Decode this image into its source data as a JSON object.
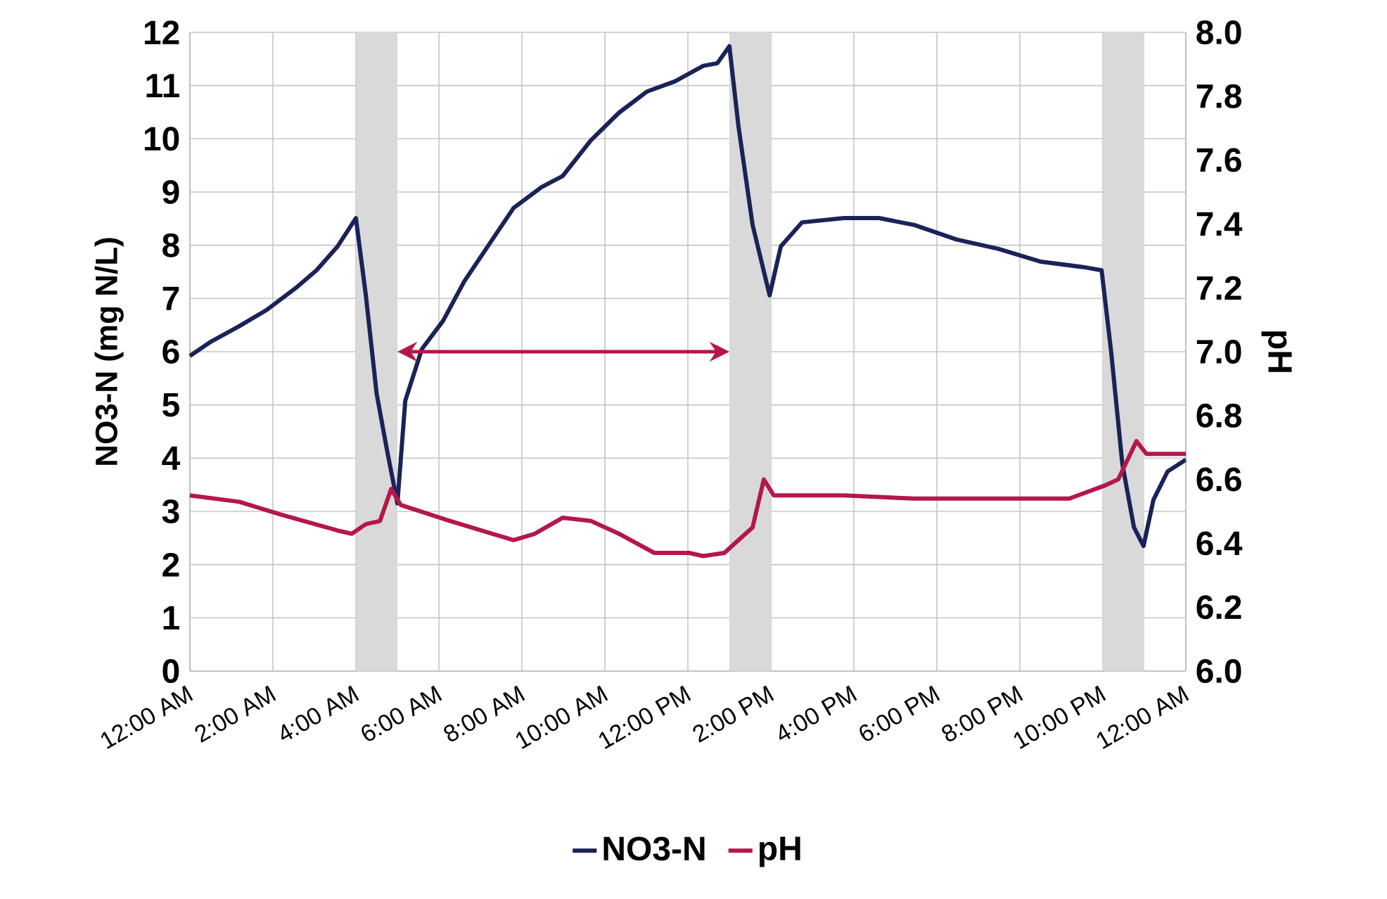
{
  "chart_data": {
    "type": "line",
    "ylabel": "NO3-N (mg N/L)",
    "y2label": "pH",
    "x": [
      0,
      0.51,
      1.19,
      1.86,
      2.54,
      3.05,
      3.56,
      4.0,
      4.24,
      4.5,
      4.75,
      5.0,
      5.19,
      5.59,
      6.1,
      6.61,
      7.29,
      7.8,
      8.47,
      8.98,
      9.66,
      10.34,
      11.02,
      11.69,
      12.37,
      12.71,
      13.0,
      13.22,
      13.56,
      13.97,
      14.24,
      14.75,
      15.76,
      16.61,
      17.46,
      18.47,
      19.49,
      20.51,
      21.53,
      21.97,
      22.2,
      22.47,
      22.75,
      22.98,
      23.22,
      23.56,
      24
    ],
    "series": [
      {
        "name": "NO3-N",
        "color": "#1a2357",
        "values": [
          5.92,
          6.19,
          6.48,
          6.79,
          7.19,
          7.53,
          7.98,
          8.51,
          7.06,
          5.21,
          4.15,
          3.15,
          5.08,
          6.05,
          6.58,
          7.32,
          8.11,
          8.7,
          9.09,
          9.3,
          9.97,
          10.49,
          10.89,
          11.08,
          11.37,
          11.42,
          11.74,
          10.23,
          8.38,
          7.06,
          7.98,
          8.43,
          8.51,
          8.51,
          8.38,
          8.11,
          7.93,
          7.69,
          7.59,
          7.53,
          6.0,
          3.89,
          2.7,
          2.35,
          3.22,
          3.75,
          3.97
        ]
      },
      {
        "name": "pH",
        "color": "#b5174a",
        "axis": "y2",
        "x": [
          0,
          1.19,
          2.2,
          3.56,
          3.9,
          4.24,
          4.58,
          4.85,
          5.08,
          6.27,
          7.29,
          7.8,
          8.31,
          8.98,
          9.66,
          10.34,
          11.19,
          12.03,
          12.37,
          12.88,
          13.22,
          13.56,
          13.83,
          14.07,
          15.76,
          17.46,
          19.15,
          21.19,
          22.03,
          22.37,
          22.81,
          23.05,
          23.56,
          24
        ],
        "values": [
          6.55,
          6.53,
          6.49,
          6.44,
          6.43,
          6.46,
          6.47,
          6.57,
          6.52,
          6.47,
          6.43,
          6.41,
          6.43,
          6.48,
          6.47,
          6.43,
          6.37,
          6.37,
          6.36,
          6.37,
          6.41,
          6.45,
          6.6,
          6.55,
          6.55,
          6.54,
          6.54,
          6.54,
          6.58,
          6.6,
          6.72,
          6.68,
          6.68,
          6.68
        ]
      }
    ],
    "xlim": [
      0,
      24
    ],
    "xticks": [
      {
        "value": 0,
        "label": "12:00 AM"
      },
      {
        "value": 2,
        "label": "2:00 AM"
      },
      {
        "value": 4,
        "label": "4:00 AM"
      },
      {
        "value": 6,
        "label": "6:00 AM"
      },
      {
        "value": 8,
        "label": "8:00 AM"
      },
      {
        "value": 10,
        "label": "10:00 AM"
      },
      {
        "value": 12,
        "label": "12:00 PM"
      },
      {
        "value": 14,
        "label": "2:00 PM"
      },
      {
        "value": 16,
        "label": "4:00 PM"
      },
      {
        "value": 18,
        "label": "6:00 PM"
      },
      {
        "value": 20,
        "label": "8:00 PM"
      },
      {
        "value": 22,
        "label": "10:00 PM"
      },
      {
        "value": 24,
        "label": "12:00 AM"
      }
    ],
    "ylim": [
      0,
      12
    ],
    "yticks": [
      0,
      1,
      2,
      3,
      4,
      5,
      6,
      7,
      8,
      9,
      10,
      11,
      12
    ],
    "y2lim": [
      6,
      8
    ],
    "y2ticks": [
      {
        "value": 6,
        "label": "6.0"
      },
      6.2,
      6.4,
      6.6,
      6.8,
      {
        "value": 7,
        "label": "7.0"
      },
      7.2,
      7.4,
      7.6,
      7.8,
      {
        "value": 8,
        "label": "8.0"
      }
    ],
    "bands": [
      {
        "axis": "x",
        "from": 4,
        "to": 5,
        "color": "#d9d9d9"
      },
      {
        "axis": "x",
        "from": 13,
        "to": 14,
        "color": "#d9d9d9"
      },
      {
        "axis": "x",
        "from": 22,
        "to": 23,
        "color": "#d9d9d9"
      }
    ],
    "grid": true,
    "legend": "bottom"
  }
}
